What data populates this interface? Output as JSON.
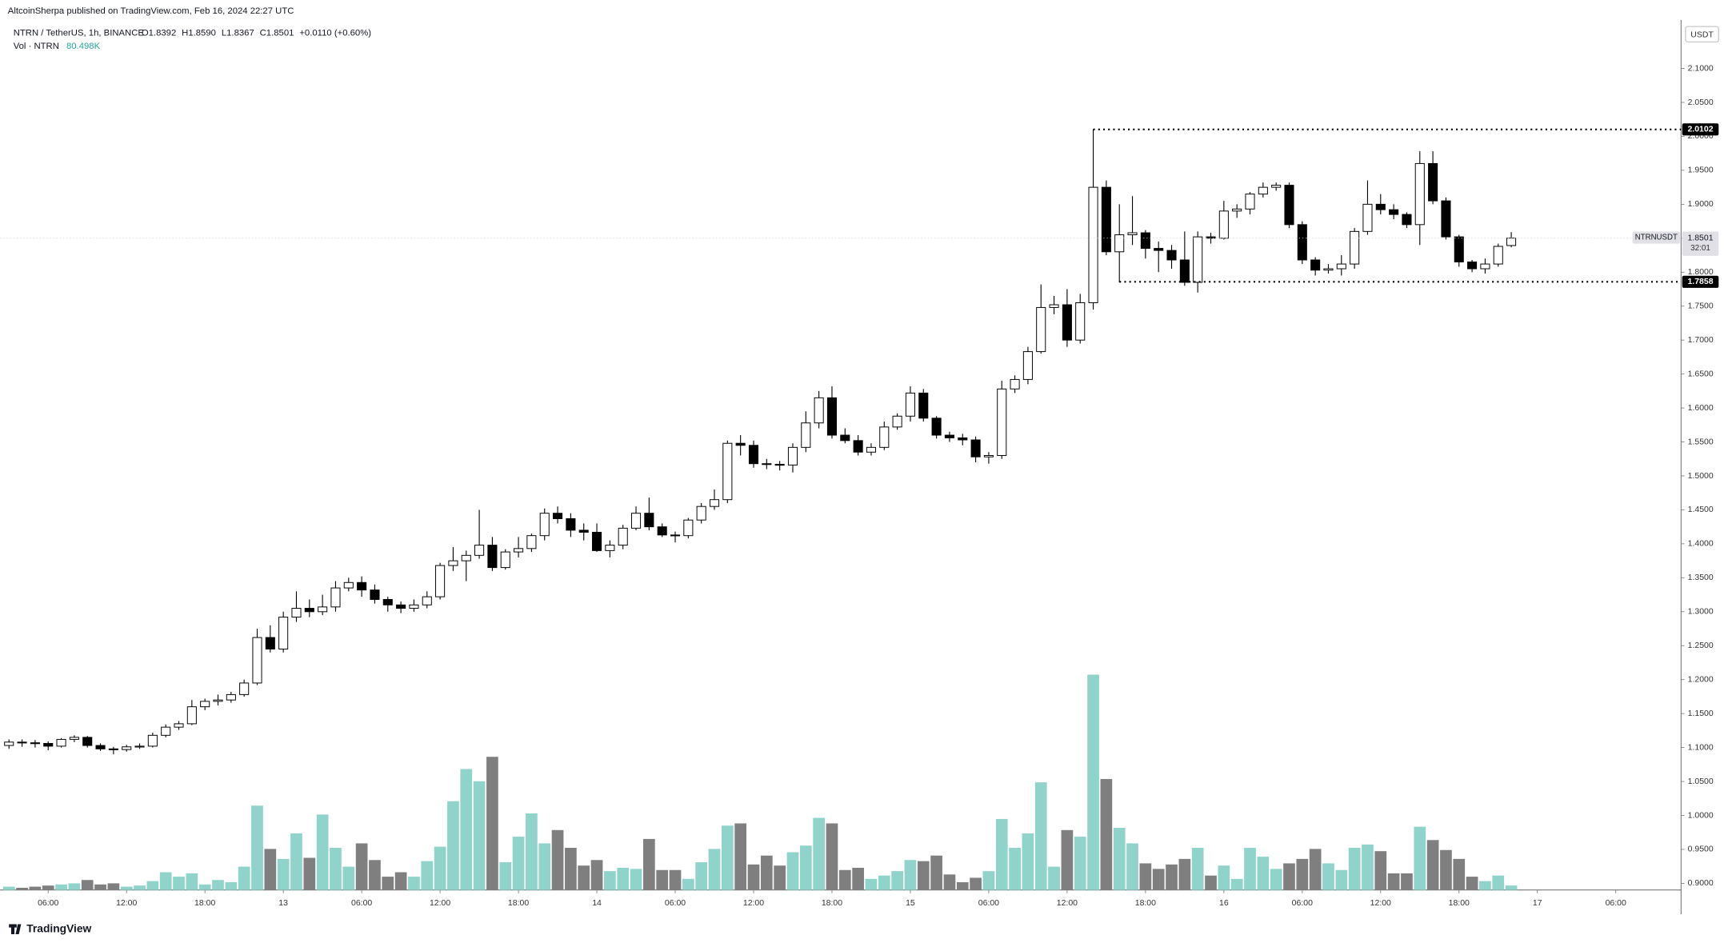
{
  "chart_data": {
    "type": "candlestick",
    "header": "AltcoinSherpa published on TradingView.com, Feb 16, 2024 22:27 UTC",
    "symbol_legend": "NTRN / TetherUS, 1h, BINANCE",
    "ohlc_legend": [
      "O1.8392",
      "H1.8590",
      "L1.8367",
      "C1.8501",
      "+0.0110 (+0.60%)"
    ],
    "volume_legend": "Vol · NTRN",
    "volume_legend_value": "80.498K",
    "currency": "USDT",
    "symbol": "NTRNUSDT",
    "countdown": "32:01",
    "footer": "TradingView",
    "up_color": "#ffffff",
    "down_color": "#000000",
    "volume_up_color": "#8fd3cb",
    "volume_down_color": "#7f7f7f",
    "x": [
      3,
      4,
      5,
      6,
      7,
      8,
      9,
      10,
      11,
      12,
      13,
      14,
      15,
      16,
      17,
      18,
      19,
      20,
      21,
      22,
      23,
      24,
      25,
      26,
      27,
      28,
      29,
      30,
      31,
      32,
      33,
      34,
      35,
      36,
      37,
      38,
      39,
      40,
      41,
      42,
      43,
      44,
      45,
      46,
      47,
      48,
      49,
      50,
      51,
      52,
      53,
      54,
      55,
      56,
      57,
      58,
      59,
      60,
      61,
      62,
      63,
      64,
      65,
      66,
      67,
      68,
      69,
      70,
      71,
      72,
      73,
      74,
      75,
      76,
      77,
      78,
      79,
      80,
      81,
      82,
      83,
      84,
      85,
      86,
      87,
      88,
      89,
      90,
      91,
      92,
      93,
      94,
      95,
      96,
      97,
      98,
      99,
      100,
      101,
      102,
      103,
      104,
      105,
      106,
      107,
      108,
      109,
      110,
      111,
      112,
      113,
      114,
      115,
      116,
      117,
      118
    ],
    "open": [
      1.103,
      1.108,
      1.107,
      1.106,
      1.102,
      1.112,
      1.115,
      1.103,
      1.098,
      1.097,
      1.101,
      1.102,
      1.118,
      1.13,
      1.135,
      1.16,
      1.168,
      1.17,
      1.178,
      1.195,
      1.262,
      1.245,
      1.292,
      1.305,
      1.3,
      1.307,
      1.335,
      1.343,
      1.332,
      1.318,
      1.31,
      1.305,
      1.31,
      1.322,
      1.368,
      1.375,
      1.383,
      1.398,
      1.365,
      1.388,
      1.393,
      1.412,
      1.445,
      1.437,
      1.42,
      1.417,
      1.39,
      1.398,
      1.423,
      1.445,
      1.425,
      1.413,
      1.412,
      1.435,
      1.455,
      1.465,
      1.548,
      1.545,
      1.518,
      1.517,
      1.516,
      1.542,
      1.578,
      1.615,
      1.56,
      1.552,
      1.535,
      1.542,
      1.572,
      1.588,
      1.622,
      1.585,
      1.56,
      1.556,
      1.553,
      1.528,
      1.53,
      1.628,
      1.642,
      1.683,
      1.748,
      1.752,
      1.7,
      1.755,
      1.925,
      1.83,
      1.855,
      1.858,
      1.835,
      1.832,
      1.818,
      1.785,
      1.852,
      1.85,
      1.89,
      1.893,
      1.915,
      1.925,
      1.928,
      1.87,
      1.818,
      1.803,
      1.805,
      1.812,
      1.86,
      1.9,
      1.892,
      1.885,
      1.87,
      1.96,
      1.905,
      1.852,
      1.815,
      1.805,
      1.812,
      1.8392
    ],
    "high": [
      1.112,
      1.112,
      1.111,
      1.109,
      1.114,
      1.118,
      1.117,
      1.106,
      1.101,
      1.104,
      1.106,
      1.122,
      1.134,
      1.139,
      1.17,
      1.172,
      1.178,
      1.182,
      1.2,
      1.275,
      1.28,
      1.3,
      1.33,
      1.318,
      1.325,
      1.345,
      1.35,
      1.352,
      1.34,
      1.322,
      1.315,
      1.318,
      1.33,
      1.372,
      1.395,
      1.39,
      1.45,
      1.41,
      1.392,
      1.41,
      1.415,
      1.452,
      1.455,
      1.445,
      1.43,
      1.43,
      1.405,
      1.428,
      1.455,
      1.468,
      1.43,
      1.418,
      1.438,
      1.46,
      1.48,
      1.552,
      1.56,
      1.552,
      1.525,
      1.522,
      1.548,
      1.595,
      1.625,
      1.632,
      1.57,
      1.56,
      1.548,
      1.58,
      1.592,
      1.632,
      1.628,
      1.588,
      1.565,
      1.562,
      1.558,
      1.535,
      1.64,
      1.648,
      1.69,
      1.782,
      1.765,
      1.775,
      1.768,
      2.0102,
      1.935,
      1.9,
      1.912,
      1.862,
      1.845,
      1.84,
      1.86,
      1.86,
      1.858,
      1.905,
      1.9,
      1.918,
      1.932,
      1.932,
      1.932,
      1.875,
      1.822,
      1.812,
      1.825,
      1.865,
      1.935,
      1.915,
      1.9,
      1.888,
      1.978,
      1.978,
      1.91,
      1.855,
      1.818,
      1.82,
      1.842,
      1.859
    ],
    "low": [
      1.098,
      1.101,
      1.1,
      1.096,
      1.1,
      1.108,
      1.1,
      1.095,
      1.09,
      1.094,
      1.098,
      1.1,
      1.115,
      1.126,
      1.133,
      1.155,
      1.162,
      1.166,
      1.175,
      1.192,
      1.24,
      1.24,
      1.285,
      1.292,
      1.295,
      1.3,
      1.33,
      1.322,
      1.312,
      1.3,
      1.298,
      1.3,
      1.305,
      1.318,
      1.36,
      1.345,
      1.378,
      1.36,
      1.362,
      1.38,
      1.388,
      1.405,
      1.43,
      1.41,
      1.405,
      1.388,
      1.38,
      1.392,
      1.42,
      1.42,
      1.41,
      1.402,
      1.408,
      1.43,
      1.45,
      1.46,
      1.53,
      1.512,
      1.51,
      1.508,
      1.505,
      1.535,
      1.57,
      1.555,
      1.548,
      1.53,
      1.53,
      1.538,
      1.568,
      1.58,
      1.58,
      1.555,
      1.55,
      1.545,
      1.52,
      1.518,
      1.525,
      1.622,
      1.635,
      1.68,
      1.738,
      1.69,
      1.695,
      1.745,
      1.825,
      1.785,
      1.84,
      1.82,
      1.8,
      1.805,
      1.78,
      1.77,
      1.842,
      1.848,
      1.88,
      1.885,
      1.91,
      1.92,
      1.865,
      1.812,
      1.795,
      1.798,
      1.795,
      1.805,
      1.855,
      1.885,
      1.878,
      1.865,
      1.84,
      1.9,
      1.848,
      1.808,
      1.8,
      1.798,
      1.808,
      1.8367
    ],
    "close": [
      1.108,
      1.107,
      1.106,
      1.102,
      1.112,
      1.115,
      1.103,
      1.098,
      1.097,
      1.101,
      1.102,
      1.118,
      1.13,
      1.135,
      1.16,
      1.168,
      1.17,
      1.178,
      1.195,
      1.262,
      1.245,
      1.292,
      1.305,
      1.3,
      1.307,
      1.335,
      1.343,
      1.332,
      1.318,
      1.31,
      1.305,
      1.31,
      1.322,
      1.368,
      1.375,
      1.383,
      1.398,
      1.365,
      1.388,
      1.393,
      1.412,
      1.445,
      1.437,
      1.42,
      1.417,
      1.39,
      1.398,
      1.423,
      1.445,
      1.425,
      1.413,
      1.412,
      1.435,
      1.455,
      1.465,
      1.548,
      1.545,
      1.518,
      1.517,
      1.516,
      1.542,
      1.578,
      1.615,
      1.56,
      1.552,
      1.535,
      1.542,
      1.572,
      1.588,
      1.622,
      1.585,
      1.56,
      1.556,
      1.553,
      1.528,
      1.53,
      1.628,
      1.642,
      1.683,
      1.748,
      1.752,
      1.7,
      1.755,
      1.925,
      1.83,
      1.855,
      1.858,
      1.835,
      1.832,
      1.818,
      1.785,
      1.852,
      1.85,
      1.89,
      1.893,
      1.915,
      1.925,
      1.928,
      1.87,
      1.818,
      1.803,
      1.805,
      1.812,
      1.86,
      1.9,
      1.892,
      1.885,
      1.87,
      1.96,
      1.905,
      1.852,
      1.815,
      1.805,
      1.812,
      1.838,
      1.8501
    ],
    "volume": [
      60,
      40,
      60,
      80,
      100,
      120,
      180,
      100,
      120,
      60,
      80,
      160,
      320,
      240,
      300,
      100,
      180,
      140,
      420,
      1520,
      740,
      560,
      1020,
      580,
      1360,
      760,
      420,
      840,
      540,
      240,
      320,
      240,
      520,
      780,
      1600,
      2180,
      1960,
      2400,
      500,
      960,
      1380,
      840,
      1080,
      760,
      440,
      540,
      340,
      400,
      380,
      920,
      360,
      360,
      200,
      500,
      740,
      1160,
      1200,
      460,
      620,
      440,
      680,
      800,
      1300,
      1200,
      360,
      400,
      200,
      260,
      340,
      540,
      520,
      620,
      280,
      140,
      220,
      340,
      1280,
      760,
      1020,
      1940,
      420,
      1080,
      960,
      3880,
      2000,
      1120,
      840,
      480,
      380,
      460,
      560,
      760,
      260,
      440,
      200,
      760,
      600,
      380,
      480,
      560,
      740,
      480,
      360,
      760,
      820,
      700,
      300,
      300,
      1140,
      900,
      720,
      560,
      240,
      160,
      260,
      80.498
    ],
    "xlim": [
      2.32,
      131
    ],
    "xticks": [
      {
        "value": 6,
        "label": "06:00"
      },
      {
        "value": 12,
        "label": "12:00"
      },
      {
        "value": 18,
        "label": "18:00"
      },
      {
        "value": 24,
        "label": "13"
      },
      {
        "value": 30,
        "label": "06:00"
      },
      {
        "value": 36,
        "label": "12:00"
      },
      {
        "value": 42,
        "label": "18:00"
      },
      {
        "value": 48,
        "label": "14"
      },
      {
        "value": 54,
        "label": "06:00"
      },
      {
        "value": 60,
        "label": "12:00"
      },
      {
        "value": 66,
        "label": "18:00"
      },
      {
        "value": 72,
        "label": "15"
      },
      {
        "value": 78,
        "label": "06:00"
      },
      {
        "value": 84,
        "label": "12:00"
      },
      {
        "value": 90,
        "label": "18:00"
      },
      {
        "value": 96,
        "label": "16"
      },
      {
        "value": 102,
        "label": "06:00"
      },
      {
        "value": 108,
        "label": "12:00"
      },
      {
        "value": 114,
        "label": "18:00"
      },
      {
        "value": 120,
        "label": "17"
      },
      {
        "value": 126,
        "label": "06:00"
      }
    ],
    "ylim": [
      0.8902,
      2.1715
    ],
    "yticks": [
      {
        "value": 0.9,
        "label": "0.9000"
      },
      {
        "value": 0.95,
        "label": "0.9500"
      },
      {
        "value": 1.0,
        "label": "1.0000"
      },
      {
        "value": 1.05,
        "label": "1.0500"
      },
      {
        "value": 1.1,
        "label": "1.1000"
      },
      {
        "value": 1.15,
        "label": "1.1500"
      },
      {
        "value": 1.2,
        "label": "1.2000"
      },
      {
        "value": 1.25,
        "label": "1.2500"
      },
      {
        "value": 1.3,
        "label": "1.3000"
      },
      {
        "value": 1.35,
        "label": "1.3500"
      },
      {
        "value": 1.4,
        "label": "1.4000"
      },
      {
        "value": 1.45,
        "label": "1.4500"
      },
      {
        "value": 1.5,
        "label": "1.5000"
      },
      {
        "value": 1.55,
        "label": "1.5500"
      },
      {
        "value": 1.6,
        "label": "1.6000"
      },
      {
        "value": 1.65,
        "label": "1.6500"
      },
      {
        "value": 1.7,
        "label": "1.7000"
      },
      {
        "value": 1.75,
        "label": "1.7500"
      },
      {
        "value": 1.8,
        "label": "1.8000"
      },
      {
        "value": 1.85,
        "label": "1.8500"
      },
      {
        "value": 1.9,
        "label": "1.9000"
      },
      {
        "value": 1.95,
        "label": "1.9500"
      },
      {
        "value": 2.0,
        "label": "2.0000"
      },
      {
        "value": 2.05,
        "label": "2.0500"
      },
      {
        "value": 2.1,
        "label": "2.1000"
      }
    ],
    "levels": [
      {
        "value": 2.0102,
        "label": "2.0102",
        "x_start": 86
      },
      {
        "value": 1.7858,
        "label": "1.7858",
        "x_start": 88
      }
    ]
  }
}
